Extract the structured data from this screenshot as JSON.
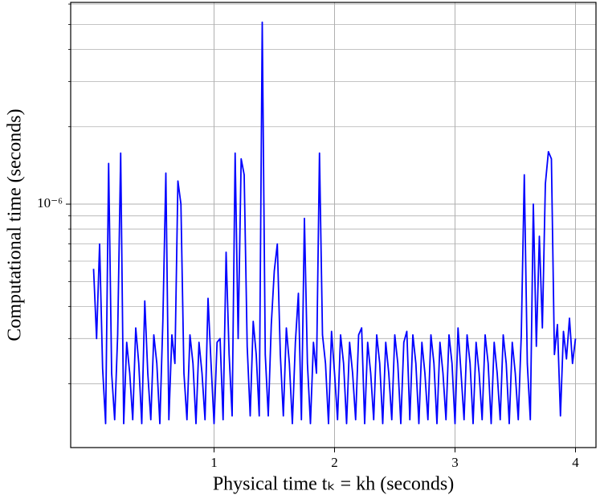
{
  "chart_data": {
    "type": "line",
    "xlabel": "Physical time tₖ = kh (seconds)",
    "ylabel": "Computational time (seconds)",
    "log_y": true,
    "grid": true,
    "xlim": [
      -0.19,
      4.17
    ],
    "xticks": [
      1,
      2,
      3,
      4
    ],
    "ylim": [
      1.13e-07,
      6.09e-06
    ],
    "yticks": [
      {
        "value": 1e-06,
        "label": "10⁻⁶"
      }
    ],
    "minor_yticks": [
      2e-07,
      3e-07,
      4e-07,
      5e-07,
      6e-07,
      7e-07,
      8e-07,
      9e-07,
      2e-06,
      3e-06,
      4e-06,
      5e-06,
      6e-06
    ],
    "x": [
      0,
      0.025,
      0.05,
      0.075,
      0.1,
      0.125,
      0.15,
      0.175,
      0.2,
      0.225,
      0.25,
      0.275,
      0.3,
      0.325,
      0.35,
      0.375,
      0.4,
      0.425,
      0.45,
      0.475,
      0.5,
      0.525,
      0.55,
      0.575,
      0.6,
      0.625,
      0.65,
      0.675,
      0.7,
      0.725,
      0.75,
      0.775,
      0.8,
      0.825,
      0.85,
      0.875,
      0.9,
      0.925,
      0.95,
      0.975,
      1,
      1.025,
      1.05,
      1.075,
      1.1,
      1.125,
      1.15,
      1.175,
      1.2,
      1.225,
      1.25,
      1.275,
      1.3,
      1.325,
      1.35,
      1.375,
      1.4,
      1.425,
      1.45,
      1.475,
      1.5,
      1.525,
      1.55,
      1.575,
      1.6,
      1.625,
      1.65,
      1.675,
      1.7,
      1.725,
      1.75,
      1.775,
      1.8,
      1.825,
      1.85,
      1.875,
      1.9,
      1.925,
      1.95,
      1.975,
      2,
      2.025,
      2.05,
      2.075,
      2.1,
      2.125,
      2.15,
      2.175,
      2.2,
      2.225,
      2.25,
      2.275,
      2.3,
      2.325,
      2.35,
      2.375,
      2.4,
      2.425,
      2.45,
      2.475,
      2.5,
      2.525,
      2.55,
      2.575,
      2.6,
      2.625,
      2.65,
      2.675,
      2.7,
      2.725,
      2.75,
      2.775,
      2.8,
      2.825,
      2.85,
      2.875,
      2.9,
      2.925,
      2.95,
      2.975,
      3,
      3.025,
      3.05,
      3.075,
      3.1,
      3.125,
      3.15,
      3.175,
      3.2,
      3.225,
      3.25,
      3.275,
      3.3,
      3.325,
      3.35,
      3.375,
      3.4,
      3.425,
      3.45,
      3.475,
      3.5,
      3.525,
      3.55,
      3.575,
      3.6,
      3.625,
      3.65,
      3.675,
      3.7,
      3.725,
      3.75,
      3.775,
      3.8,
      3.825,
      3.85,
      3.875,
      3.9,
      3.925,
      3.95,
      3.975,
      4
    ],
    "series": [
      {
        "color": "#0000ff",
        "values": [
          5.6e-07,
          3e-07,
          7e-07,
          2.3e-07,
          1.4e-07,
          1.44e-06,
          2.2e-07,
          1.45e-07,
          3.1e-07,
          1.58e-06,
          1.4e-07,
          2.9e-07,
          2.2e-07,
          1.45e-07,
          3.3e-07,
          2.4e-07,
          1.4e-07,
          4.2e-07,
          2.2e-07,
          1.45e-07,
          3.1e-07,
          2.4e-07,
          1.4e-07,
          3.5e-07,
          1.32e-06,
          1.45e-07,
          3.1e-07,
          2.4e-07,
          1.23e-06,
          1e-06,
          2.2e-07,
          1.45e-07,
          3.1e-07,
          2.4e-07,
          1.4e-07,
          2.9e-07,
          2.2e-07,
          1.45e-07,
          4.3e-07,
          2.4e-07,
          1.4e-07,
          2.9e-07,
          3e-07,
          1.45e-07,
          6.5e-07,
          2.6e-07,
          1.5e-07,
          1.58e-06,
          3e-07,
          1.5e-06,
          1.3e-06,
          2.8e-07,
          1.5e-07,
          3.5e-07,
          2.6e-07,
          1.5e-07,
          5.1e-06,
          2.6e-07,
          1.5e-07,
          3.4e-07,
          5.5e-07,
          7e-07,
          2.6e-07,
          1.5e-07,
          3.3e-07,
          2.4e-07,
          1.4e-07,
          2.9e-07,
          4.5e-07,
          1.45e-07,
          8.8e-07,
          2.4e-07,
          1.4e-07,
          2.9e-07,
          2.2e-07,
          1.58e-06,
          3.1e-07,
          2.4e-07,
          1.4e-07,
          3.2e-07,
          2.2e-07,
          1.45e-07,
          3.1e-07,
          2.4e-07,
          1.4e-07,
          2.9e-07,
          2.2e-07,
          1.45e-07,
          3.1e-07,
          3.3e-07,
          1.4e-07,
          2.9e-07,
          2.2e-07,
          1.45e-07,
          3.1e-07,
          2.4e-07,
          1.4e-07,
          2.9e-07,
          2.2e-07,
          1.45e-07,
          3.1e-07,
          2.4e-07,
          1.4e-07,
          2.9e-07,
          3.2e-07,
          1.45e-07,
          3.1e-07,
          2.4e-07,
          1.4e-07,
          2.9e-07,
          2.2e-07,
          1.45e-07,
          3.1e-07,
          2.4e-07,
          1.4e-07,
          2.9e-07,
          2.2e-07,
          1.45e-07,
          3.1e-07,
          2.4e-07,
          1.4e-07,
          3.3e-07,
          2.2e-07,
          1.45e-07,
          3.1e-07,
          2.4e-07,
          1.4e-07,
          2.9e-07,
          2.2e-07,
          1.45e-07,
          3.1e-07,
          2.4e-07,
          1.4e-07,
          2.9e-07,
          2.2e-07,
          1.45e-07,
          3.1e-07,
          2.4e-07,
          1.4e-07,
          2.9e-07,
          2.2e-07,
          1.45e-07,
          3.1e-07,
          1.3e-06,
          2.4e-07,
          1.45e-07,
          1e-06,
          2.8e-07,
          7.5e-07,
          3.3e-07,
          1.2e-06,
          1.6e-06,
          1.5e-06,
          2.6e-07,
          3.4e-07,
          1.5e-07,
          3.2e-07,
          2.5e-07,
          3.6e-07,
          2.4e-07,
          3e-07
        ]
      }
    ]
  }
}
